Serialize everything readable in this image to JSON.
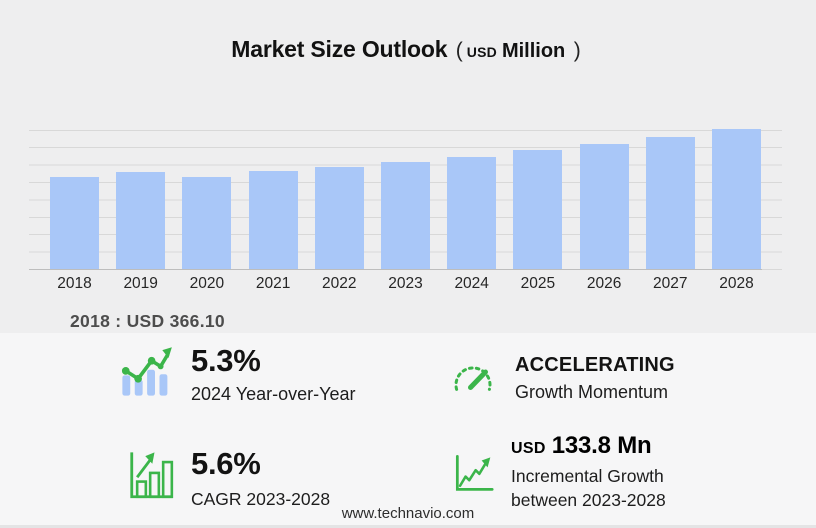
{
  "title": {
    "main": "Market Size Outlook",
    "paren_open": "(",
    "currency": "USD",
    "unit": "Million",
    "paren_close": ")"
  },
  "chart_data": {
    "type": "bar",
    "title": "Market Size Outlook (USD Million)",
    "categories": [
      "2018",
      "2019",
      "2020",
      "2021",
      "2022",
      "2023",
      "2024",
      "2025",
      "2026",
      "2027",
      "2028"
    ],
    "values": [
      366.1,
      389.9,
      367.8,
      391.5,
      408.8,
      427.1,
      449.7,
      474.9,
      501.5,
      529.6,
      560.9
    ],
    "unit": "USD Million",
    "xlabel": "",
    "ylabel": "",
    "ylim": [
      0,
      580
    ],
    "grid": true,
    "legend": false,
    "bar_color": "#a9c7f8"
  },
  "caption": {
    "label": "2018 : USD  366.10"
  },
  "stats": {
    "yoy": {
      "value": "5.3%",
      "label": "2024 Year-over-Year"
    },
    "momentum": {
      "value": "ACCELERATING",
      "label": "Growth Momentum"
    },
    "cagr": {
      "value": "5.6%",
      "label": "CAGR 2023-2028"
    },
    "incremental": {
      "currency": "USD",
      "value": "133.8 Mn",
      "label_line1": "Incremental Growth",
      "label_line2": "between 2023-2028"
    }
  },
  "footer": {
    "url": "www.technavio.com"
  },
  "colors": {
    "bar": "#a9c7f8",
    "accent_green": "#3bb54a",
    "background": "#eeeeef",
    "panel": "#f6f6f7"
  }
}
